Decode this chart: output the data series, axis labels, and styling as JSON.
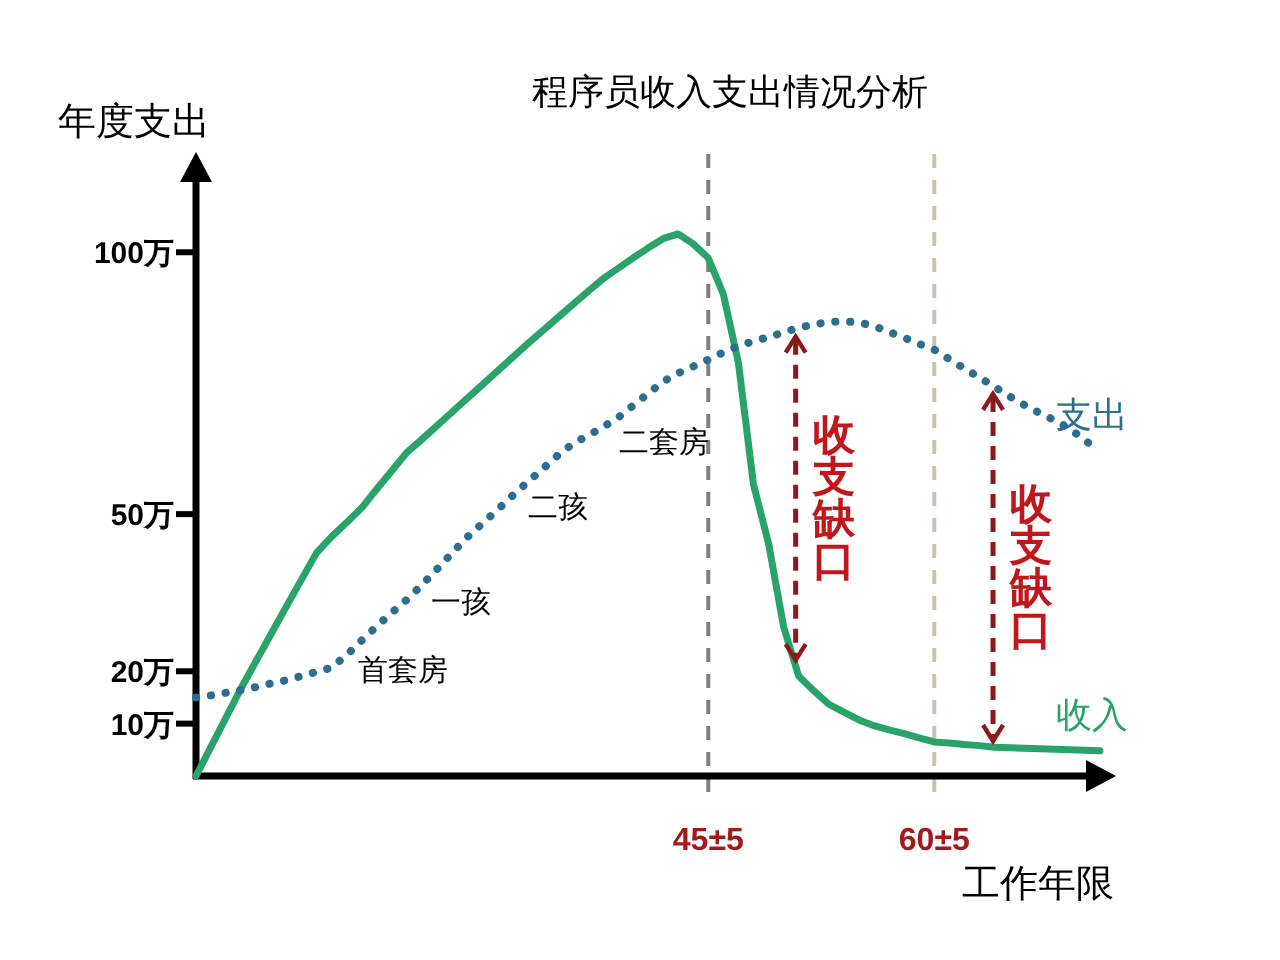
{
  "chart_data": {
    "type": "line",
    "title": "程序员收入支出情况分析",
    "xlabel": "工作年限",
    "ylabel": "年度支出",
    "categories": [
      null,
      null,
      null,
      null,
      null,
      null,
      null,
      null,
      null,
      null,
      null,
      null,
      null,
      null,
      null,
      null,
      null,
      null,
      null,
      null,
      null,
      null,
      null,
      null,
      null,
      null,
      null,
      null,
      null,
      null,
      null,
      null,
      null,
      null,
      "45±5",
      null,
      null,
      null,
      null,
      null,
      null,
      null,
      null,
      null,
      null,
      null,
      null,
      null,
      null,
      "60±5",
      null,
      null,
      null,
      null,
      null,
      null,
      null,
      null,
      null,
      null,
      null
    ],
    "ylim": [
      0,
      118
    ],
    "yticks": [
      {
        "value": 10,
        "label": "10万"
      },
      {
        "value": 20,
        "label": "20万"
      },
      {
        "value": 50,
        "label": "50万"
      },
      {
        "value": 100,
        "label": "100万"
      }
    ],
    "grid": false,
    "legend": false,
    "series": [
      {
        "name": "收入",
        "color": "#2aa36b",
        "line_style": "solid",
        "values": [
          0,
          5.6,
          11.2,
          16.8,
          22.0,
          27.2,
          32.4,
          37.5,
          42.6,
          45.7,
          48.4,
          51.2,
          54.8,
          58.3,
          61.8,
          64.3,
          66.9,
          69.5,
          72.1,
          74.7,
          77.3,
          79.9,
          82.5,
          85.0,
          87.5,
          90.0,
          92.5,
          94.9,
          96.9,
          98.9,
          100.8,
          102.6,
          103.5,
          101.6,
          98.9,
          92.0,
          78.9,
          55.7,
          44.4,
          28.5,
          19.1,
          16.3,
          13.7,
          12.2,
          10.7,
          9.6,
          8.8,
          8.1,
          7.3,
          6.5,
          6.3,
          6.0,
          5.8,
          5.5,
          5.4,
          5.3,
          5.2,
          5.1,
          5.0,
          4.9,
          4.8
        ]
      },
      {
        "name": "支出",
        "color": "#2c6e8f",
        "line_style": "dotted",
        "values": [
          15.0,
          15.4,
          15.9,
          16.4,
          17.0,
          17.7,
          18.3,
          19.1,
          19.9,
          20.7,
          23.1,
          25.9,
          28.6,
          31.2,
          33.7,
          36.5,
          39.5,
          42.6,
          45.6,
          48.2,
          50.8,
          53.5,
          56.1,
          58.6,
          61.2,
          63.4,
          65.0,
          66.6,
          68.4,
          70.7,
          73.0,
          75.3,
          76.9,
          78.2,
          79.5,
          80.9,
          82.1,
          83.0,
          83.8,
          84.7,
          85.6,
          86.2,
          86.7,
          86.8,
          86.6,
          85.9,
          84.8,
          83.7,
          82.5,
          81.4,
          79.6,
          77.8,
          76.1,
          74.3,
          72.5,
          70.8,
          69.3,
          67.9,
          66.3,
          64.1,
          62.0
        ]
      }
    ],
    "ref_lines": [
      {
        "axis": "x",
        "value": "45±5",
        "color": "#7f7f7f",
        "line_style": "dashed"
      },
      {
        "axis": "x",
        "value": "60±5",
        "color": "#c9c2ad",
        "line_style": "dashed"
      }
    ],
    "annotations": [
      "首套房",
      "一孩",
      "二孩",
      "二套房",
      "收支缺口",
      "收支缺口"
    ]
  }
}
